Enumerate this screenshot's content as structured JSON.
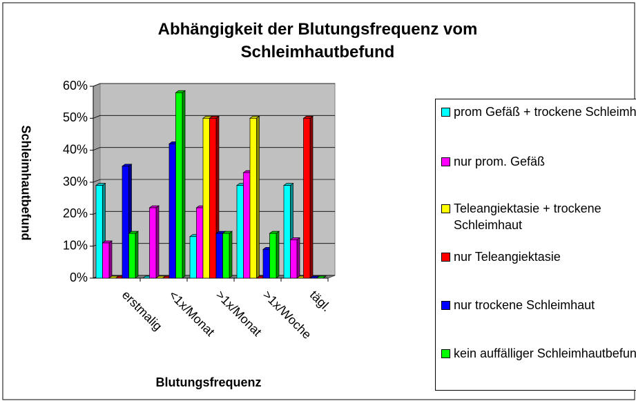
{
  "chart_data": {
    "type": "bar3d",
    "title": "Abhängigkeit der Blutungsfrequenz vom Schleimhautbefund",
    "x_label": "Blutungsfrequenz",
    "y_label": "Schleimhautbefund",
    "categories": [
      "erstmalig",
      "<1x/Monat",
      ">1x/Monat",
      ">1x/Woche",
      "tägl."
    ],
    "series": [
      {
        "name": "prom Gefäß + trockene Schleimhaut",
        "color": "#00ffff",
        "values": [
          29,
          0,
          13,
          29,
          29
        ]
      },
      {
        "name": "nur prom. Gefäß",
        "color": "#ff00ff",
        "values": [
          11,
          22,
          22,
          33,
          12
        ]
      },
      {
        "name": "Teleangiektasie + trockene Schleimhaut",
        "color": "#ffff00",
        "values": [
          0,
          0,
          50,
          50,
          0
        ]
      },
      {
        "name": "nur Teleangiektasie",
        "color": "#ff0000",
        "values": [
          0,
          0,
          50,
          0,
          50
        ]
      },
      {
        "name": "nur trockene Schleimhaut",
        "color": "#0000ff",
        "values": [
          35,
          42,
          14,
          9,
          0
        ]
      },
      {
        "name": "kein auffälliger Schleimhautbefund",
        "color": "#00ff00",
        "values": [
          14,
          58,
          14,
          14,
          0
        ]
      }
    ],
    "ylim": [
      0,
      60
    ],
    "yticks": [
      {
        "value": 0,
        "label": "0%"
      },
      {
        "value": 10,
        "label": "10%"
      },
      {
        "value": 20,
        "label": "20%"
      },
      {
        "value": 30,
        "label": "30%"
      },
      {
        "value": 40,
        "label": "40%"
      },
      {
        "value": 50,
        "label": "50%"
      },
      {
        "value": 60,
        "label": "60%"
      }
    ],
    "grid": true,
    "legend": "right"
  }
}
